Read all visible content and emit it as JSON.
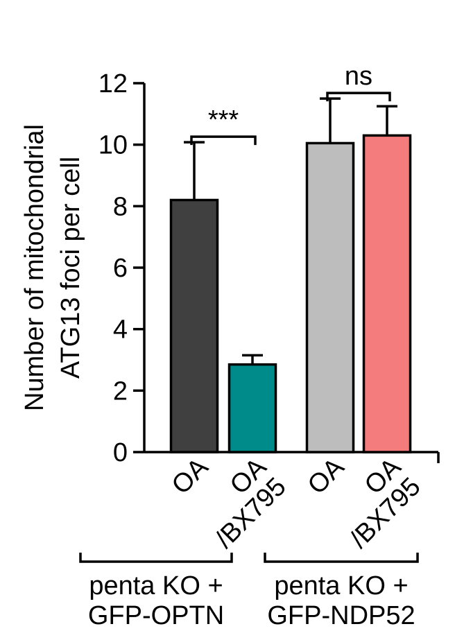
{
  "chart_data": {
    "type": "bar",
    "ylabel_lines": [
      "Number of mitochondrial",
      "ATG13 foci per cell"
    ],
    "ylim": [
      0,
      12
    ],
    "yticks": [
      0,
      2,
      4,
      6,
      8,
      10,
      12
    ],
    "categories": [
      {
        "lines": [
          "OA"
        ]
      },
      {
        "lines": [
          "OA",
          "/BX795"
        ]
      },
      {
        "lines": [
          "OA"
        ]
      },
      {
        "lines": [
          "OA",
          "/BX795"
        ]
      }
    ],
    "values": [
      8.2,
      2.85,
      10.05,
      10.3
    ],
    "errors": [
      1.88,
      0.3,
      1.45,
      0.95
    ],
    "colors": [
      "#404040",
      "#008B8B",
      "#BDBDBD",
      "#F47C7C"
    ],
    "groups": [
      {
        "lines": [
          "penta KO +",
          "GFP-OPTN"
        ],
        "members": [
          0,
          1
        ]
      },
      {
        "lines": [
          "penta KO +",
          "GFP-NDP52"
        ],
        "members": [
          2,
          3
        ]
      }
    ],
    "significance": [
      {
        "between": [
          0,
          1
        ],
        "label": "***"
      },
      {
        "between": [
          2,
          3
        ],
        "label": "ns"
      }
    ]
  }
}
